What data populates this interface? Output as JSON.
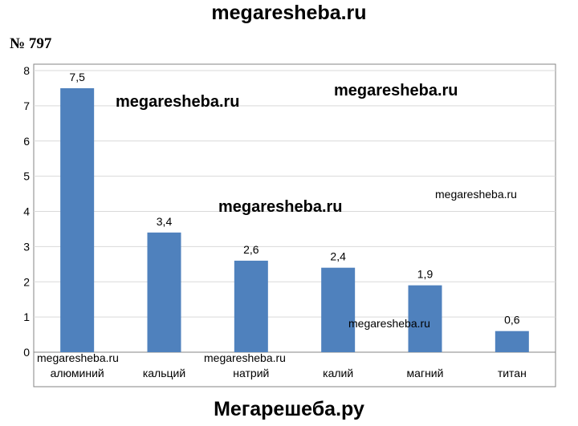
{
  "header": {
    "site": "megaresheba.ru"
  },
  "problem": {
    "number": "№ 797"
  },
  "footer": {
    "site": "Мегарешеба.ру"
  },
  "watermarks": {
    "w1": "megaresheba.ru",
    "w2": "megaresheba.ru",
    "w3": "megaresheba.ru",
    "w4": "megaresheba.ru",
    "w5": "megaresheba.ru",
    "w6": "megaresheba.ru",
    "w7": "megaresheba.ru"
  },
  "chart_data": {
    "type": "bar",
    "title": "",
    "xlabel": "",
    "ylabel": "",
    "categories": [
      "алюминий",
      "кальций",
      "натрий",
      "калий",
      "магний",
      "титан"
    ],
    "values": [
      7.5,
      3.4,
      2.6,
      2.4,
      1.9,
      0.6
    ],
    "data_labels": [
      "7,5",
      "3,4",
      "2,6",
      "2,4",
      "1,9",
      "0,6"
    ],
    "ylim": [
      0,
      8
    ],
    "yticks": [
      0,
      1,
      2,
      3,
      4,
      5,
      6,
      7,
      8
    ],
    "grid": true,
    "legend": "none",
    "bar_color": "#4f81bd"
  }
}
